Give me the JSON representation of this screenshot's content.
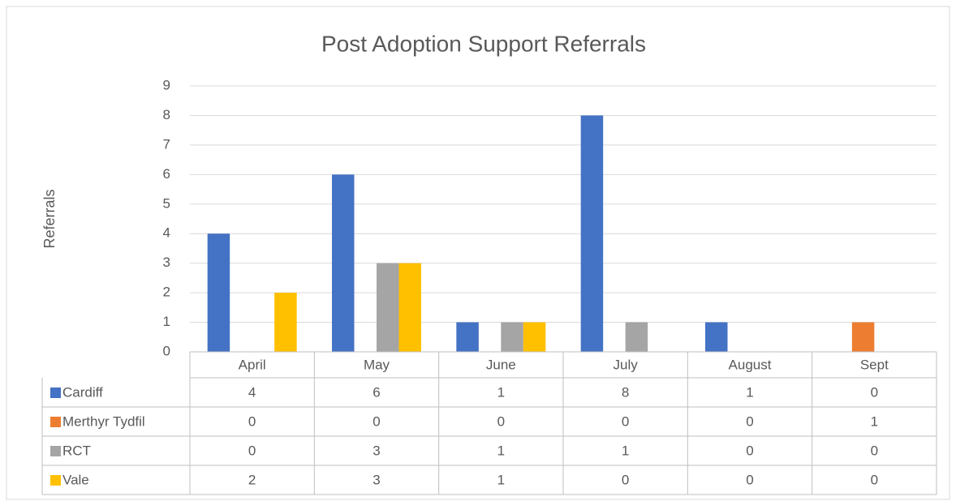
{
  "chart_data": {
    "type": "bar",
    "title": "Post Adoption Support Referrals",
    "y_label": "Referrals",
    "categories": [
      "April",
      "May",
      "June",
      "July",
      "August",
      "Sept"
    ],
    "series": [
      {
        "name": "Cardiff",
        "color": "#4472c4",
        "values": [
          4,
          6,
          1,
          8,
          1,
          0
        ]
      },
      {
        "name": "Merthyr Tydfil",
        "color": "#ed7d31",
        "values": [
          0,
          0,
          0,
          0,
          0,
          1
        ]
      },
      {
        "name": "RCT",
        "color": "#a5a5a5",
        "values": [
          0,
          3,
          1,
          1,
          0,
          0
        ]
      },
      {
        "name": "Vale",
        "color": "#ffc000",
        "values": [
          2,
          3,
          1,
          0,
          0,
          0
        ]
      }
    ],
    "ylim": [
      0,
      9
    ],
    "yticks": [
      0,
      1,
      2,
      3,
      4,
      5,
      6,
      7,
      8,
      9
    ],
    "grid": true,
    "data_table": true
  }
}
